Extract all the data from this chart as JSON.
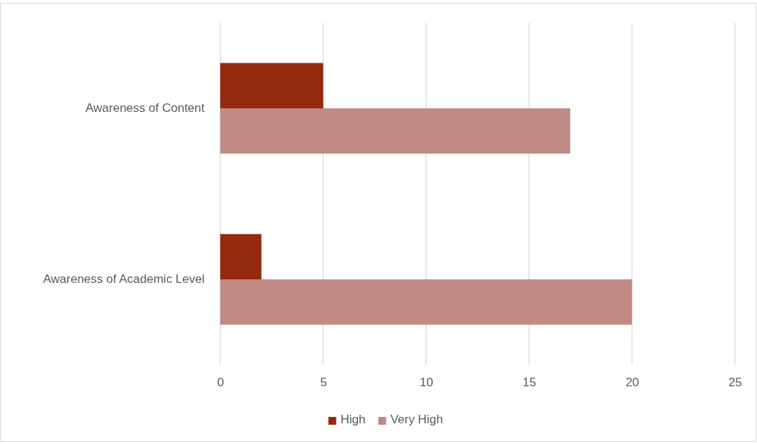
{
  "chart_data": {
    "type": "bar",
    "orientation": "horizontal",
    "categories": [
      "Awareness of Content",
      "Awareness of Academic Level"
    ],
    "series": [
      {
        "name": "High",
        "color": "#952a0f",
        "values": [
          5,
          2
        ]
      },
      {
        "name": "Very High",
        "color": "#c08a85",
        "values": [
          17,
          20
        ]
      }
    ],
    "xlim": [
      0,
      25
    ],
    "xticks": [
      0,
      5,
      10,
      15,
      20,
      25
    ],
    "grid": "x",
    "legend": "bottom"
  }
}
